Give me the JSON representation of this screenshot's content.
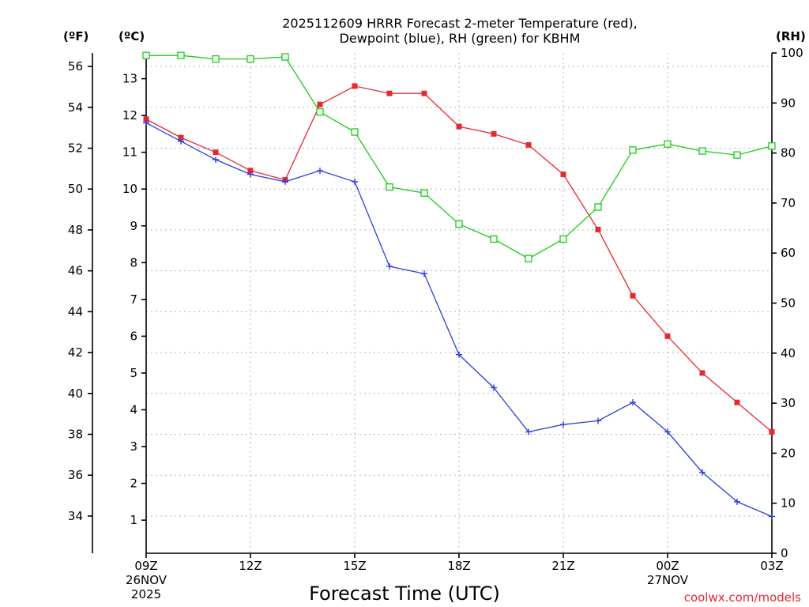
{
  "chart_data": {
    "type": "line",
    "title_lines": [
      "2025112609 HRRR Forecast 2-meter Temperature (red),",
      "Dewpoint (blue), RH (green) for KBHM"
    ],
    "xlabel": "Forecast Time (UTC)",
    "credit": "coolwx.com/models",
    "left_axis_f": {
      "header": "(ºF)",
      "ticks": [
        34,
        36,
        38,
        40,
        42,
        44,
        46,
        48,
        50,
        52,
        54,
        56
      ]
    },
    "left_axis_c": {
      "header": "(ºC)",
      "range": [
        0.1,
        13.7
      ],
      "ticks": [
        1,
        2,
        3,
        4,
        5,
        6,
        7,
        8,
        9,
        10,
        11,
        12,
        13
      ]
    },
    "right_axis_rh": {
      "header": "(RH)",
      "range": [
        0,
        100
      ],
      "ticks": [
        0,
        10,
        20,
        30,
        40,
        50,
        60,
        70,
        80,
        90,
        100
      ]
    },
    "x_range_hours": [
      0,
      18
    ],
    "x_ticks": [
      {
        "hour": 0,
        "label": "09Z",
        "date": "26NOV",
        "year": "2025"
      },
      {
        "hour": 3,
        "label": "12Z"
      },
      {
        "hour": 6,
        "label": "15Z"
      },
      {
        "hour": 9,
        "label": "18Z"
      },
      {
        "hour": 12,
        "label": "21Z"
      },
      {
        "hour": 15,
        "label": "00Z",
        "date": "27NOV"
      },
      {
        "hour": 18,
        "label": "03Z"
      }
    ],
    "hours": [
      0,
      1,
      2,
      3,
      4,
      5,
      6,
      7,
      8,
      9,
      10,
      11,
      12,
      13,
      14,
      15,
      16,
      17,
      18
    ],
    "series": [
      {
        "name": "2-meter Temperature",
        "axis": "celsius",
        "color": "#e8282f",
        "marker": "filled-square",
        "values": [
          11.9,
          11.4,
          11.0,
          10.5,
          10.25,
          12.3,
          12.8,
          12.6,
          12.6,
          11.7,
          11.5,
          11.2,
          10.4,
          8.9,
          7.1,
          6.0,
          5.0,
          4.2,
          3.4
        ]
      },
      {
        "name": "Dewpoint",
        "axis": "celsius",
        "color": "#2b3fe0",
        "marker": "plus",
        "values": [
          11.8,
          11.3,
          10.8,
          10.4,
          10.2,
          10.5,
          10.2,
          7.9,
          7.7,
          5.5,
          4.6,
          3.4,
          3.6,
          3.7,
          4.2,
          3.4,
          2.3,
          1.5,
          1.1
        ]
      },
      {
        "name": "Relative Humidity",
        "axis": "rh",
        "color": "#18cc18",
        "marker": "open-square",
        "values": [
          99.5,
          99.5,
          98.8,
          98.8,
          99.2,
          88.2,
          84.2,
          73.2,
          72.0,
          65.8,
          62.8,
          58.9,
          62.8,
          69.2,
          80.6,
          81.8,
          80.4,
          79.6,
          81.4
        ]
      }
    ]
  }
}
